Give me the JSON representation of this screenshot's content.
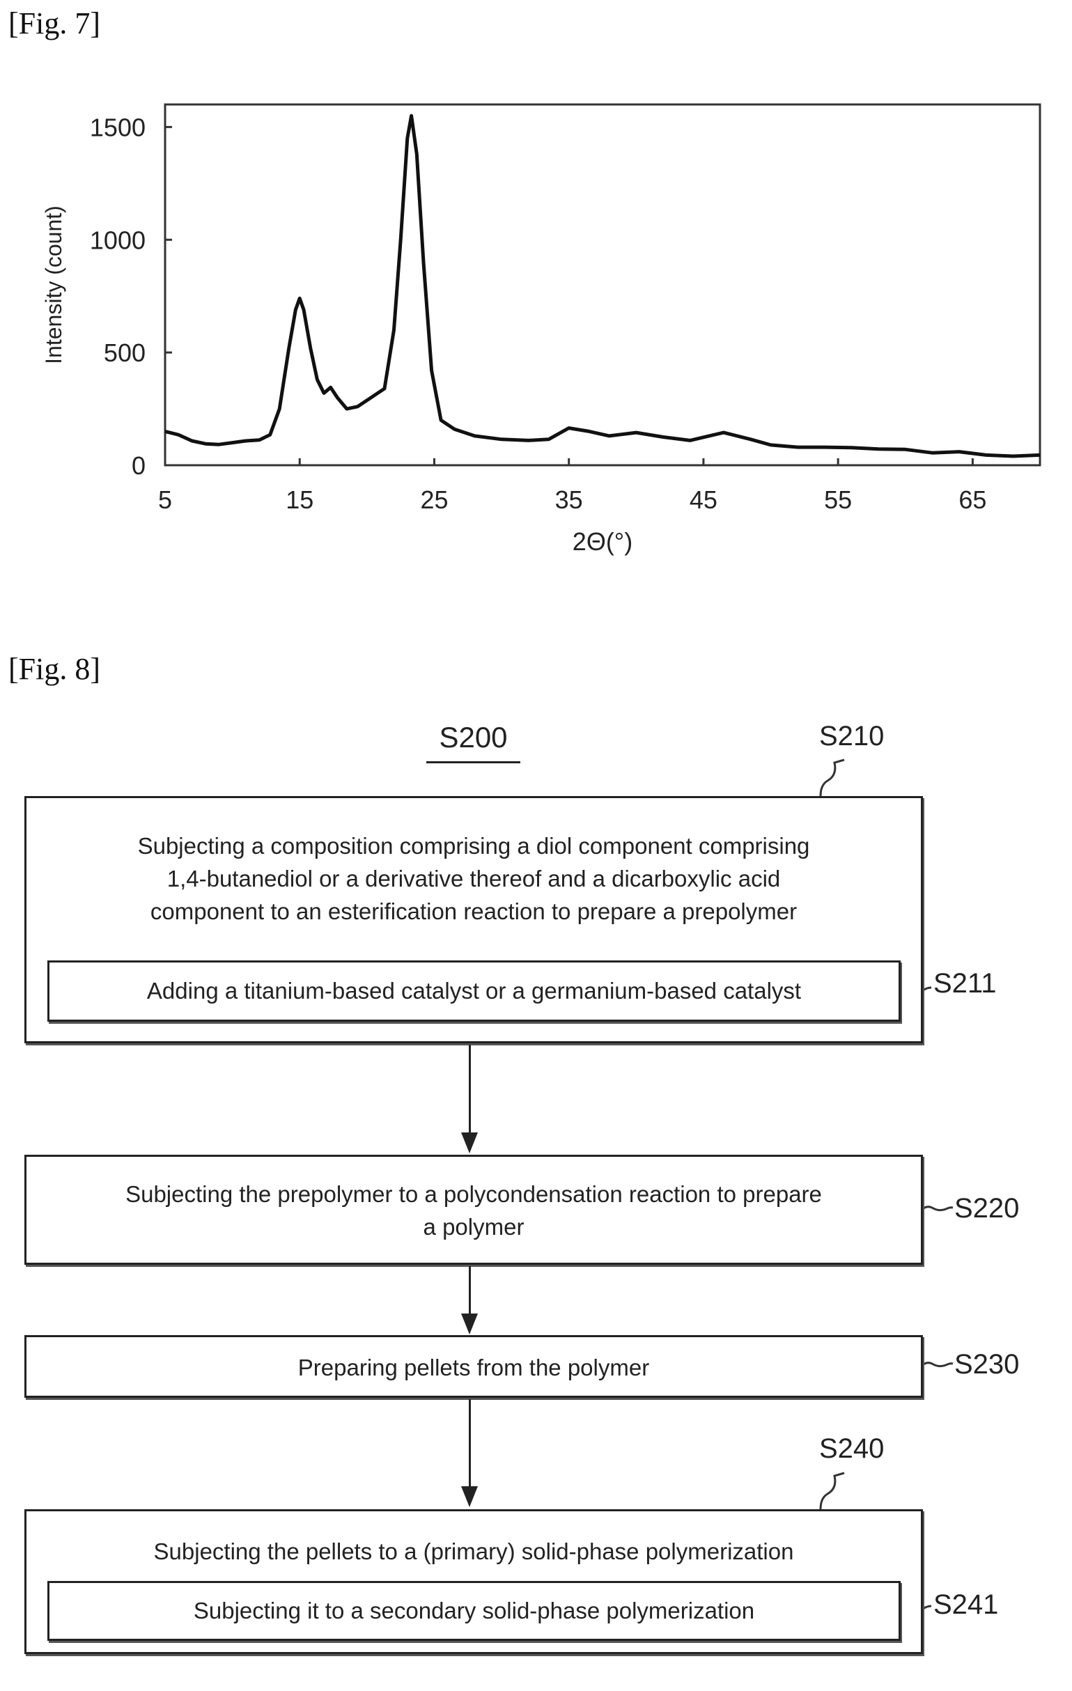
{
  "fig7": {
    "label": "[Fig. 7]",
    "chart_data": {
      "type": "line",
      "title": "",
      "xlabel": "2Θ(°)",
      "ylabel": "Intensity (count)",
      "xlim": [
        5,
        70
      ],
      "ylim": [
        0,
        1600
      ],
      "xticks": [
        5,
        15,
        25,
        35,
        45,
        55,
        65
      ],
      "yticks": [
        0,
        500,
        1000,
        1500
      ],
      "series": [
        {
          "x": [
            5,
            6,
            7,
            8,
            9,
            10,
            11,
            12,
            12.8,
            13.5,
            14.2,
            14.7,
            15.0,
            15.3,
            15.8,
            16.3,
            16.8,
            17.3,
            17.8,
            18.5,
            19.3,
            20.3,
            21.3,
            22.0,
            22.5,
            23.0,
            23.3,
            23.7,
            24.2,
            24.8,
            25.5,
            26.5,
            28,
            30,
            32,
            33.5,
            35,
            36.5,
            38,
            40,
            42,
            44,
            46.5,
            48.5,
            50,
            52,
            54,
            56,
            58,
            60,
            62,
            64,
            66,
            68,
            70
          ],
          "y": [
            150,
            135,
            108,
            95,
            92,
            100,
            108,
            112,
            135,
            250,
            520,
            690,
            740,
            690,
            520,
            380,
            320,
            345,
            300,
            250,
            260,
            300,
            340,
            600,
            1000,
            1450,
            1550,
            1380,
            900,
            420,
            200,
            160,
            130,
            115,
            110,
            115,
            165,
            150,
            130,
            145,
            125,
            110,
            145,
            115,
            90,
            80,
            80,
            78,
            72,
            70,
            55,
            60,
            45,
            40,
            45
          ]
        }
      ]
    }
  },
  "fig8": {
    "label": "[Fig. 8]",
    "title": "S200",
    "steps": {
      "s210": {
        "id": "S210",
        "lines": [
          "Subjecting a composition comprising a diol component comprising",
          "1,4-butanediol or a derivative thereof and a dicarboxylic acid",
          "component to an esterification reaction to prepare a prepolymer"
        ]
      },
      "s211": {
        "id": "S211",
        "text": "Adding a titanium-based catalyst or a germanium-based catalyst"
      },
      "s220": {
        "id": "S220",
        "lines": [
          "Subjecting the prepolymer to a polycondensation reaction to prepare",
          "a polymer"
        ]
      },
      "s230": {
        "id": "S230",
        "text": "Preparing pellets from the polymer"
      },
      "s240": {
        "id": "S240",
        "text": "Subjecting the pellets to a (primary) solid-phase polymerization"
      },
      "s241": {
        "id": "S241",
        "text": "Subjecting it to a secondary solid-phase polymerization"
      }
    }
  }
}
